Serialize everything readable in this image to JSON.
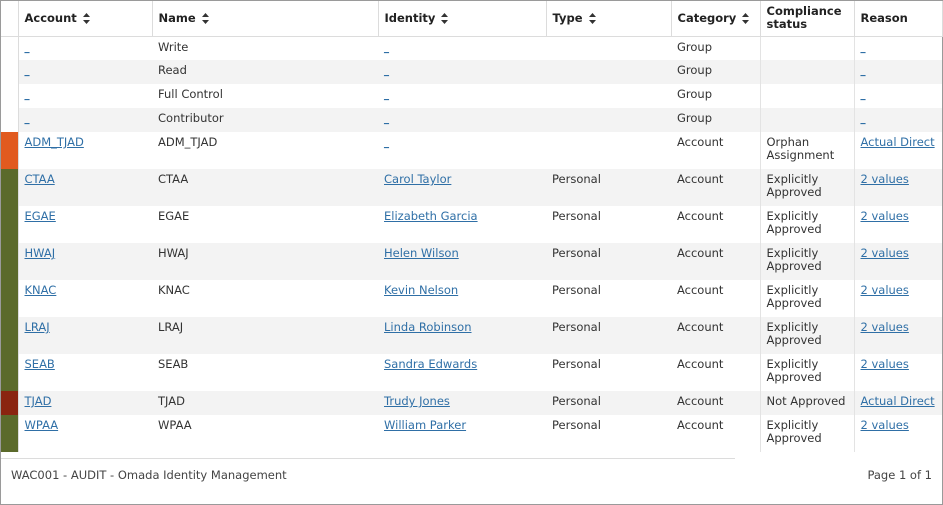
{
  "columns": {
    "account": "Account",
    "name": "Name",
    "identity": "Identity",
    "type": "Type",
    "category": "Category",
    "compliance": "Compliance status",
    "reason": "Reason"
  },
  "status_colors": {
    "orphan": "#e15a1f",
    "approved": "#5b6a2b",
    "not_approved": "#8a2410"
  },
  "rows": [
    {
      "account": "_",
      "name": "Write",
      "identity": "_",
      "type": "",
      "category": "Group",
      "compliance": "",
      "reason": "_"
    },
    {
      "account": "_",
      "name": "Read",
      "identity": "_",
      "type": "",
      "category": "Group",
      "compliance": "",
      "reason": "_"
    },
    {
      "account": "_",
      "name": "Full Control",
      "identity": "_",
      "type": "",
      "category": "Group",
      "compliance": "",
      "reason": "_"
    },
    {
      "account": "_",
      "name": "Contributor",
      "identity": "_",
      "type": "",
      "category": "Group",
      "compliance": "",
      "reason": "_"
    },
    {
      "account": "ADM_TJAD",
      "name": "ADM_TJAD",
      "identity": "_",
      "type": "",
      "category": "Account",
      "compliance": "Orphan Assignment",
      "reason": "Actual Direct"
    },
    {
      "account": "CTAA",
      "name": "CTAA",
      "identity": "Carol Taylor",
      "type": "Personal",
      "category": "Account",
      "compliance": "Explicitly Approved",
      "reason": "2 values"
    },
    {
      "account": "EGAE",
      "name": "EGAE",
      "identity": "Elizabeth Garcia",
      "type": "Personal",
      "category": "Account",
      "compliance": "Explicitly Approved",
      "reason": "2 values"
    },
    {
      "account": "HWAJ",
      "name": "HWAJ",
      "identity": "Helen Wilson",
      "type": "Personal",
      "category": "Account",
      "compliance": "Explicitly Approved",
      "reason": "2 values"
    },
    {
      "account": "KNAC",
      "name": "KNAC",
      "identity": "Kevin Nelson",
      "type": "Personal",
      "category": "Account",
      "compliance": "Explicitly Approved",
      "reason": "2 values"
    },
    {
      "account": "LRAJ",
      "name": "LRAJ",
      "identity": "Linda Robinson",
      "type": "Personal",
      "category": "Account",
      "compliance": "Explicitly Approved",
      "reason": "2 values"
    },
    {
      "account": "SEAB",
      "name": "SEAB",
      "identity": "Sandra Edwards",
      "type": "Personal",
      "category": "Account",
      "compliance": "Explicitly Approved",
      "reason": "2 values"
    },
    {
      "account": "TJAD",
      "name": "TJAD",
      "identity": "Trudy Jones",
      "type": "Personal",
      "category": "Account",
      "compliance": "Not Approved",
      "reason": "Actual Direct"
    },
    {
      "account": "WPAA",
      "name": "WPAA",
      "identity": "William Parker",
      "type": "Personal",
      "category": "Account",
      "compliance": "Explicitly Approved",
      "reason": "2 values"
    }
  ],
  "footer": {
    "title": "WAC001 - AUDIT - Omada Identity Management",
    "pagination": "Page 1 of 1"
  }
}
